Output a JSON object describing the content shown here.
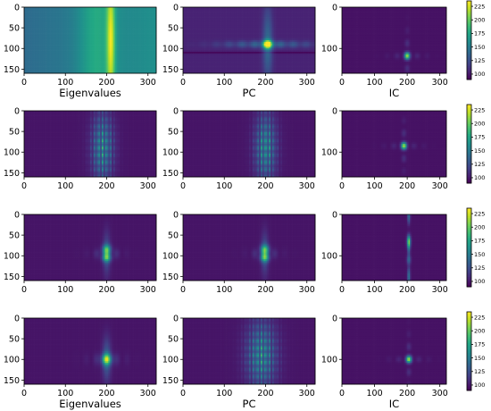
{
  "chart_data": {
    "type": "heatmap",
    "grid": {
      "rows": 4,
      "cols": 3
    },
    "x_range": [
      0,
      320
    ],
    "y_range": [
      0,
      160
    ],
    "x_ticks": [
      0,
      100,
      200,
      300
    ],
    "colormap": "viridis",
    "colorbar": {
      "range": [
        90,
        235
      ],
      "ticks": [
        100,
        125,
        150,
        175,
        200,
        225
      ]
    },
    "panels": [
      {
        "row": 0,
        "col": 0,
        "xlabel": "Eigenvalues",
        "y_ticks": [
          0,
          50,
          100,
          150
        ],
        "pattern": "vertical-band",
        "peak": {
          "x": 210,
          "y": 80
        },
        "background": 0.35,
        "has_colorbar": false
      },
      {
        "row": 0,
        "col": 1,
        "xlabel": "PC",
        "y_ticks": [
          0,
          50,
          100,
          150
        ],
        "pattern": "cross",
        "peak": {
          "x": 205,
          "y": 90
        },
        "background": 0.1,
        "has_colorbar": false
      },
      {
        "row": 0,
        "col": 2,
        "xlabel": "IC",
        "y_ticks": [
          0,
          100
        ],
        "pattern": "spot",
        "peak": {
          "x": 200,
          "y": 118
        },
        "background": 0.05,
        "has_colorbar": true
      },
      {
        "row": 1,
        "col": 0,
        "xlabel": "",
        "y_ticks": [
          0,
          50,
          100,
          150
        ],
        "pattern": "grid-stripes",
        "peak": {
          "x": 190,
          "y": 90
        },
        "background": 0.06,
        "has_colorbar": false
      },
      {
        "row": 1,
        "col": 1,
        "xlabel": "",
        "y_ticks": [
          0,
          50,
          100,
          150
        ],
        "pattern": "grid-stripes",
        "peak": {
          "x": 200,
          "y": 90
        },
        "background": 0.06,
        "has_colorbar": false
      },
      {
        "row": 1,
        "col": 2,
        "xlabel": "",
        "y_ticks": [
          0,
          100
        ],
        "pattern": "spot",
        "peak": {
          "x": 190,
          "y": 85
        },
        "background": 0.05,
        "has_colorbar": true
      },
      {
        "row": 2,
        "col": 0,
        "xlabel": "",
        "y_ticks": [
          0,
          50,
          100,
          150
        ],
        "pattern": "double-blob",
        "peak": {
          "x": 200,
          "y": 95
        },
        "background": 0.06,
        "has_colorbar": false
      },
      {
        "row": 2,
        "col": 1,
        "xlabel": "",
        "y_ticks": [
          0,
          50,
          100,
          150
        ],
        "pattern": "double-blob",
        "peak": {
          "x": 198,
          "y": 95
        },
        "background": 0.06,
        "has_colorbar": false
      },
      {
        "row": 2,
        "col": 2,
        "xlabel": "",
        "y_ticks": [
          0,
          100
        ],
        "pattern": "vertical-line",
        "peak": {
          "x": 205,
          "y": 60
        },
        "background": 0.05,
        "has_colorbar": true
      },
      {
        "row": 3,
        "col": 0,
        "xlabel": "Eigenvalues",
        "y_ticks": [
          0,
          50,
          100,
          150
        ],
        "pattern": "blob",
        "peak": {
          "x": 200,
          "y": 100
        },
        "background": 0.06,
        "has_colorbar": false
      },
      {
        "row": 3,
        "col": 1,
        "xlabel": "PC",
        "y_ticks": [
          0,
          50,
          100,
          150
        ],
        "pattern": "grid-stripes-wide",
        "peak": {
          "x": 190,
          "y": 90
        },
        "background": 0.06,
        "has_colorbar": false
      },
      {
        "row": 3,
        "col": 2,
        "xlabel": "IC",
        "y_ticks": [
          0,
          100
        ],
        "pattern": "spot",
        "peak": {
          "x": 205,
          "y": 100
        },
        "background": 0.05,
        "has_colorbar": true
      }
    ]
  }
}
